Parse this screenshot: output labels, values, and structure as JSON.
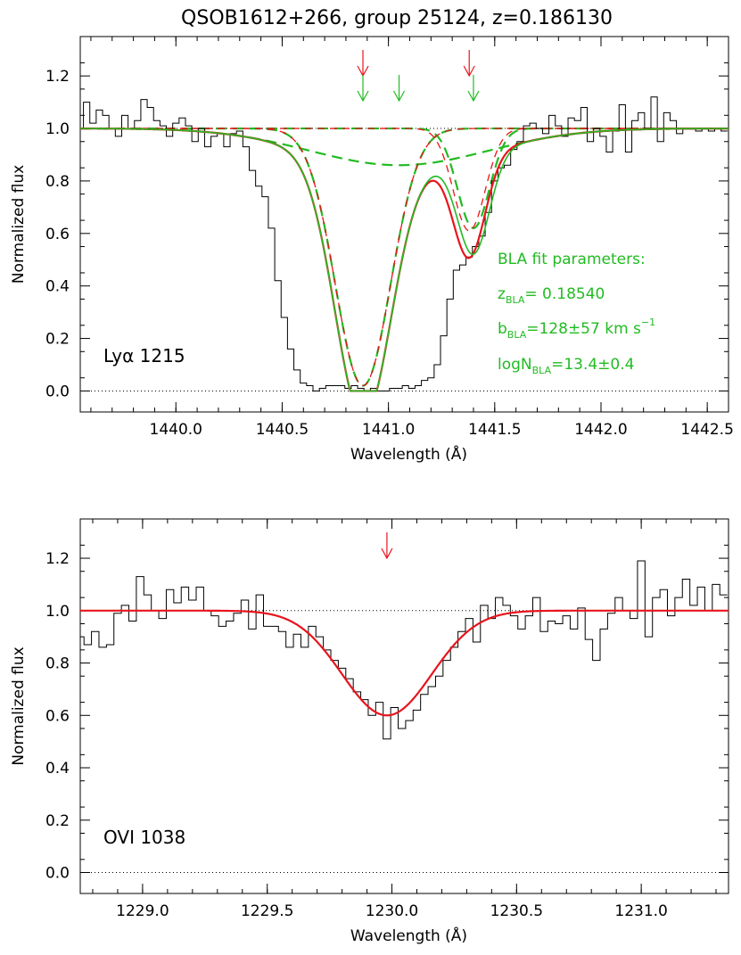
{
  "chart_data": [
    {
      "type": "line",
      "title": "QSOB1612+266, group 25124, z=0.186130",
      "xlabel": "Wavelength (Å)",
      "ylabel": "Normalized flux",
      "xlim": [
        1439.55,
        1442.6
      ],
      "ylim": [
        -0.08,
        1.35
      ],
      "xticks": [
        1440.0,
        1440.5,
        1441.0,
        1441.5,
        1442.0,
        1442.5
      ],
      "xtick_labels": [
        "1440.0",
        "1440.5",
        "1441.0",
        "1441.5",
        "1442.0",
        "1442.5"
      ],
      "yticks": [
        0.0,
        0.2,
        0.4,
        0.6,
        0.8,
        1.0,
        1.2
      ],
      "ytick_labels": [
        "0.0",
        "0.2",
        "0.4",
        "0.6",
        "0.8",
        "1.0",
        "1.2"
      ],
      "line_label": "Lyα 1215",
      "continuum": 1.0,
      "markers_red": [
        1440.88,
        1441.38
      ],
      "markers_green": [
        1440.88,
        1441.05,
        1441.4
      ],
      "fit_text": {
        "heading": "BLA fit parameters:",
        "z_sym": "z",
        "z_sub": "BLA",
        "z_val": "= 0.18540",
        "b_sym": "b",
        "b_sub": "BLA",
        "b_val": "=128±57 km s",
        "b_exp": "−1",
        "n_sym": "logN",
        "n_sub": "BLA",
        "n_val": "=13.4±0.4"
      },
      "colors": {
        "data": "#000000",
        "model_red": "#e8141c",
        "model_green": "#22bb22"
      },
      "components": [
        {
          "style": "green-dashed",
          "center": 1440.88,
          "depth": 0.98,
          "sigma": 0.13
        },
        {
          "style": "green-dashed",
          "center": 1441.05,
          "depth": 0.14,
          "sigma": 0.42
        },
        {
          "style": "green-dashed",
          "center": 1441.4,
          "depth": 0.38,
          "sigma": 0.075
        },
        {
          "style": "red-dashed",
          "center": 1440.88,
          "depth": 0.98,
          "sigma": 0.13
        },
        {
          "style": "red-dashed",
          "center": 1441.38,
          "depth": 0.39,
          "sigma": 0.075
        }
      ],
      "series": [
        {
          "style": "histogram",
          "x": [
            1439.55,
            1439.58,
            1439.61,
            1439.64,
            1439.67,
            1439.7,
            1439.73,
            1439.76,
            1439.79,
            1439.82,
            1439.85,
            1439.88,
            1439.91,
            1439.94,
            1439.97,
            1440.0,
            1440.03,
            1440.06,
            1440.09,
            1440.12,
            1440.15,
            1440.18,
            1440.21,
            1440.24,
            1440.27,
            1440.3,
            1440.33,
            1440.36,
            1440.39,
            1440.42,
            1440.45,
            1440.48,
            1440.51,
            1440.54,
            1440.57,
            1440.6,
            1440.63,
            1440.66,
            1440.69,
            1440.72,
            1440.75,
            1440.78,
            1440.81,
            1440.84,
            1440.87,
            1440.9,
            1440.93,
            1440.96,
            1440.99,
            1441.02,
            1441.05,
            1441.08,
            1441.11,
            1441.14,
            1441.17,
            1441.2,
            1441.23,
            1441.26,
            1441.29,
            1441.32,
            1441.35,
            1441.38,
            1441.41,
            1441.44,
            1441.47,
            1441.5,
            1441.53,
            1441.56,
            1441.59,
            1441.62,
            1441.65,
            1441.68,
            1441.71,
            1441.74,
            1441.77,
            1441.8,
            1441.83,
            1441.86,
            1441.89,
            1441.92,
            1441.95,
            1441.98,
            1442.01,
            1442.04,
            1442.07,
            1442.1,
            1442.13,
            1442.16,
            1442.19,
            1442.22,
            1442.25,
            1442.28,
            1442.31,
            1442.34,
            1442.37,
            1442.4,
            1442.43,
            1442.46,
            1442.49,
            1442.52,
            1442.55,
            1442.58
          ],
          "y": [
            1.0,
            1.1,
            1.02,
            1.07,
            1.05,
            1.0,
            0.97,
            1.05,
            1.0,
            1.03,
            1.11,
            1.08,
            1.03,
            1.01,
            0.97,
            1.02,
            1.04,
            1.01,
            0.95,
            1.0,
            0.93,
            0.97,
            0.98,
            0.93,
            0.98,
            0.99,
            0.93,
            0.84,
            0.78,
            0.74,
            0.62,
            0.42,
            0.28,
            0.16,
            0.08,
            0.03,
            0.02,
            0.0,
            0.01,
            0.02,
            0.02,
            0.02,
            0.01,
            0.02,
            0.01,
            0.0,
            0.01,
            0.0,
            0.0,
            0.01,
            0.01,
            0.02,
            0.01,
            0.02,
            0.04,
            0.05,
            0.1,
            0.21,
            0.35,
            0.46,
            0.48,
            0.51,
            0.55,
            0.59,
            0.68,
            0.8,
            0.85,
            0.86,
            0.92,
            0.95,
            1.01,
            1.02,
            1.0,
            0.98,
            1.05,
            1.01,
            0.97,
            1.04,
            1.03,
            1.08,
            0.95,
            1.0,
            0.97,
            0.91,
            0.99,
            1.09,
            0.91,
            1.03,
            1.06,
            1.0,
            1.12,
            0.95,
            1.06,
            1.03,
            0.98,
            1.0,
            1.0,
            0.99,
            1.0,
            0.99,
            1.0,
            0.99
          ]
        },
        {
          "style": "red-solid",
          "model": "sum",
          "components": [
            0,
            1,
            4
          ]
        },
        {
          "style": "green-solid",
          "model": "sum",
          "components": [
            0,
            1,
            2
          ]
        }
      ]
    },
    {
      "type": "line",
      "xlabel": "Wavelength (Å)",
      "ylabel": "Normalized flux",
      "xlim": [
        1228.75,
        1231.35
      ],
      "ylim": [
        -0.08,
        1.35
      ],
      "xticks": [
        1229.0,
        1229.5,
        1230.0,
        1230.5,
        1231.0
      ],
      "xtick_labels": [
        "1229.0",
        "1229.5",
        "1230.0",
        "1230.5",
        "1231.0"
      ],
      "yticks": [
        0.0,
        0.2,
        0.4,
        0.6,
        0.8,
        1.0,
        1.2
      ],
      "ytick_labels": [
        "0.0",
        "0.2",
        "0.4",
        "0.6",
        "0.8",
        "1.0",
        "1.2"
      ],
      "line_label": "OVI 1038",
      "continuum": 1.0,
      "markers_red": [
        1229.98
      ],
      "colors": {
        "data": "#000000",
        "model_red": "#e8141c"
      },
      "components": [
        {
          "style": "none",
          "center": 1229.98,
          "depth": 0.4,
          "sigma": 0.18
        }
      ],
      "series": [
        {
          "style": "histogram",
          "x": [
            1228.75,
            1228.78,
            1228.81,
            1228.84,
            1228.87,
            1228.9,
            1228.93,
            1228.96,
            1228.99,
            1229.02,
            1229.05,
            1229.08,
            1229.11,
            1229.14,
            1229.17,
            1229.2,
            1229.23,
            1229.26,
            1229.29,
            1229.32,
            1229.35,
            1229.38,
            1229.41,
            1229.44,
            1229.47,
            1229.5,
            1229.53,
            1229.56,
            1229.59,
            1229.62,
            1229.65,
            1229.68,
            1229.71,
            1229.74,
            1229.77,
            1229.8,
            1229.83,
            1229.86,
            1229.89,
            1229.92,
            1229.95,
            1229.98,
            1230.01,
            1230.04,
            1230.07,
            1230.1,
            1230.13,
            1230.16,
            1230.19,
            1230.22,
            1230.25,
            1230.28,
            1230.31,
            1230.34,
            1230.37,
            1230.4,
            1230.43,
            1230.46,
            1230.49,
            1230.52,
            1230.55,
            1230.58,
            1230.61,
            1230.64,
            1230.67,
            1230.7,
            1230.73,
            1230.76,
            1230.79,
            1230.82,
            1230.85,
            1230.88,
            1230.91,
            1230.94,
            1230.97,
            1231.0,
            1231.03,
            1231.06,
            1231.09,
            1231.12,
            1231.15,
            1231.18,
            1231.21,
            1231.24,
            1231.27,
            1231.3,
            1231.33
          ],
          "y": [
            0.9,
            0.87,
            0.92,
            0.86,
            0.87,
            0.99,
            1.02,
            0.96,
            1.13,
            1.06,
            1.0,
            0.97,
            1.08,
            1.03,
            1.09,
            1.04,
            1.09,
            1.0,
            0.98,
            0.94,
            0.96,
            0.99,
            1.04,
            0.93,
            1.06,
            0.94,
            0.94,
            0.92,
            0.86,
            0.91,
            0.86,
            0.94,
            0.9,
            0.85,
            0.81,
            0.78,
            0.74,
            0.69,
            0.66,
            0.6,
            0.65,
            0.51,
            0.63,
            0.55,
            0.58,
            0.62,
            0.68,
            0.71,
            0.75,
            0.81,
            0.86,
            0.92,
            0.97,
            0.88,
            1.02,
            0.97,
            1.05,
            1.02,
            0.98,
            0.93,
            0.98,
            1.05,
            0.92,
            0.96,
            0.95,
            0.98,
            0.93,
            1.01,
            0.89,
            0.81,
            0.93,
            0.99,
            1.05,
            1.0,
            0.97,
            1.19,
            0.9,
            1.05,
            1.08,
            0.98,
            1.05,
            1.12,
            1.02,
            1.09,
            1.0,
            1.1,
            1.06
          ]
        },
        {
          "style": "red-solid",
          "model": "sum",
          "components": [
            0
          ]
        }
      ]
    }
  ]
}
